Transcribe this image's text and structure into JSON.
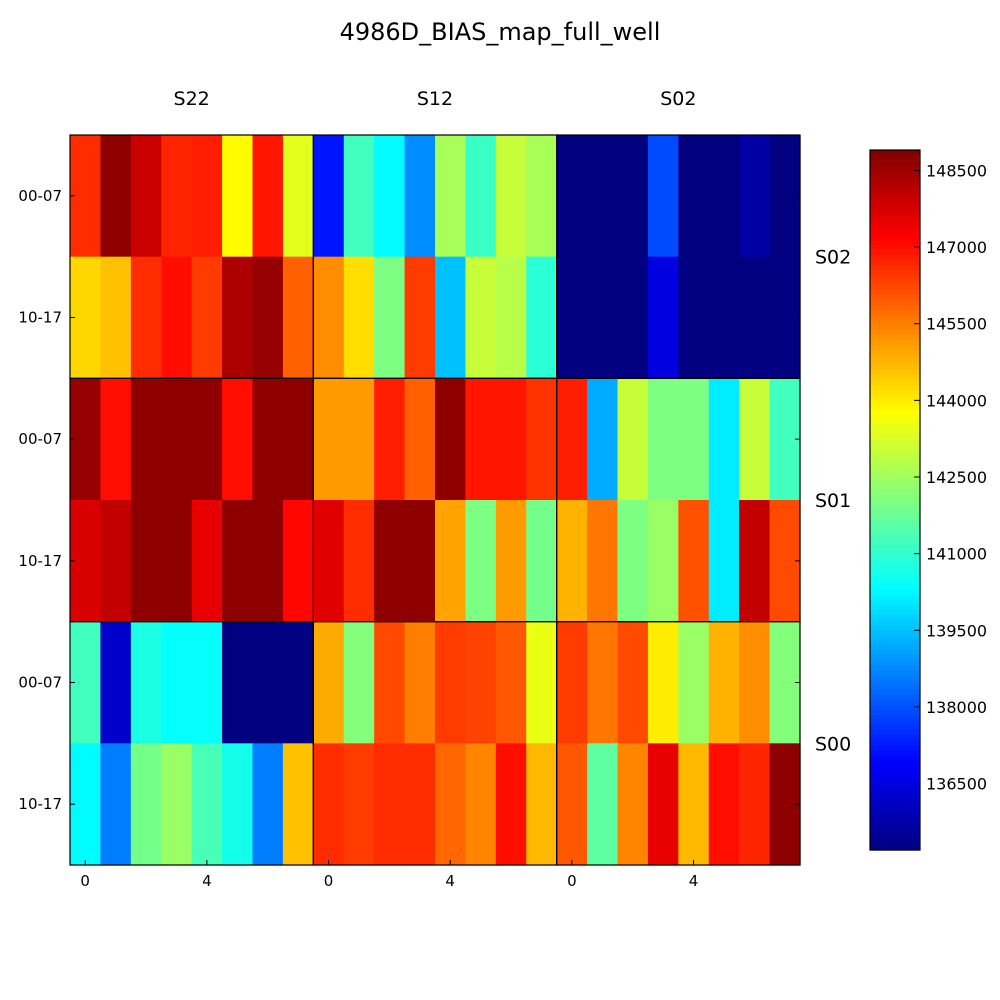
{
  "chart_data": {
    "type": "heatmap",
    "title": "4986D_BIAS_map_full_well",
    "column_groups": [
      "S22",
      "S12",
      "S02"
    ],
    "row_groups": [
      "S02",
      "S01",
      "S00"
    ],
    "row_tick_labels": [
      "00-07",
      "10-17"
    ],
    "x_tick_labels": [
      "0",
      "4"
    ],
    "colorbar": {
      "cmap": "jet",
      "vmin": 135200,
      "vmax": 148900,
      "ticks": [
        136500,
        138000,
        139500,
        141000,
        142500,
        144000,
        145500,
        147000,
        148500
      ],
      "tick_labels": [
        "136500",
        "138000",
        "139500",
        "141000",
        "142500",
        "144000",
        "145500",
        "147000",
        "148500"
      ]
    },
    "values": [
      [
        146600,
        148700,
        147900,
        146700,
        146800,
        143800,
        146900,
        143400,
        137200,
        141200,
        140300,
        138800,
        142600,
        141100,
        143000,
        142600,
        135200,
        135200,
        135200,
        137900,
        135200,
        135200,
        135700,
        135200
      ],
      [
        144300,
        144600,
        146600,
        147000,
        146400,
        148300,
        148600,
        145900,
        145300,
        144200,
        142000,
        146400,
        139500,
        143000,
        142800,
        140900,
        135200,
        135200,
        135200,
        136500,
        135200,
        135200,
        135200,
        135200
      ],
      [
        148600,
        147000,
        148700,
        148700,
        148700,
        147000,
        148700,
        148700,
        145100,
        145100,
        146800,
        145900,
        148700,
        146900,
        146900,
        146500,
        146800,
        139200,
        143000,
        142000,
        142000,
        140100,
        143000,
        141200
      ],
      [
        147700,
        148000,
        148700,
        148700,
        147500,
        148700,
        148700,
        147100,
        147600,
        146600,
        148700,
        148700,
        145000,
        142000,
        145100,
        141900,
        144800,
        145600,
        142000,
        142400,
        146100,
        140100,
        148000,
        146200
      ],
      [
        141200,
        136200,
        140700,
        140400,
        140400,
        135200,
        135200,
        135200,
        144900,
        142100,
        146200,
        145500,
        146400,
        146300,
        146000,
        143500,
        146400,
        145600,
        146200,
        144000,
        142400,
        144800,
        145300,
        142100
      ],
      [
        140300,
        138600,
        141900,
        142400,
        141300,
        140600,
        138600,
        144600,
        146600,
        146400,
        146600,
        146600,
        145800,
        145400,
        147000,
        144700,
        146000,
        141600,
        145400,
        147500,
        144700,
        147000,
        146700,
        148700
      ]
    ]
  }
}
